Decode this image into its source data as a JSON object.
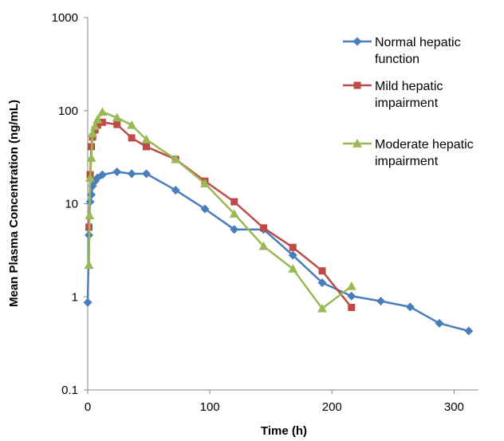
{
  "chart_data": {
    "type": "line",
    "xlabel": "Time (h)",
    "ylabel": "Mean Plasma Concentration (ng/mL)",
    "xlim": [
      0,
      320
    ],
    "ylim": [
      0.1,
      1000
    ],
    "y_scale": "log",
    "x_ticks": [
      {
        "value": 0,
        "label": "0"
      },
      {
        "value": 100,
        "label": "100"
      },
      {
        "value": 200,
        "label": "200"
      },
      {
        "value": 300,
        "label": "300"
      }
    ],
    "y_ticks": [
      {
        "value": 0.1,
        "label": "0.1"
      },
      {
        "value": 1,
        "label": "1"
      },
      {
        "value": 10,
        "label": "10"
      },
      {
        "value": 100,
        "label": "100"
      },
      {
        "value": 1000,
        "label": "1000"
      }
    ],
    "grid": false,
    "legend_position": "top-right",
    "series": [
      {
        "name": "Normal hepatic function",
        "legend_lines": [
          "Normal hepatic",
          "function"
        ],
        "color": "#4a7ebb",
        "marker": "diamond",
        "x": [
          0,
          1,
          2,
          3,
          4,
          6,
          8,
          12,
          24,
          36,
          48,
          72,
          96,
          120,
          144,
          168,
          192,
          216,
          240,
          264,
          288,
          312
        ],
        "y": [
          0.87,
          4.6,
          10.5,
          12.5,
          15.5,
          17.5,
          19,
          20.5,
          22,
          21,
          21,
          14,
          8.8,
          5.3,
          5.3,
          2.8,
          1.42,
          1.02,
          0.9,
          0.78,
          0.52,
          0.43
        ]
      },
      {
        "name": "Mild hepatic impairment",
        "legend_lines": [
          "Mild hepatic",
          "impairment"
        ],
        "color": "#be4b48",
        "marker": "square",
        "x": [
          1,
          2,
          3,
          4,
          6,
          8,
          12,
          24,
          36,
          48,
          72,
          96,
          120,
          144,
          168,
          192,
          216
        ],
        "y": [
          5.6,
          20.5,
          41,
          52,
          62,
          70,
          75,
          71,
          51,
          41,
          30,
          17.5,
          10.5,
          5.5,
          3.4,
          1.9,
          0.77
        ]
      },
      {
        "name": "Moderate hepatic impairment",
        "legend_lines": [
          "Moderate hepatic",
          "impairment"
        ],
        "color": "#98b954",
        "marker": "triangle",
        "x": [
          1,
          1.5,
          2,
          3,
          4,
          6,
          8,
          12,
          24,
          36,
          48,
          72,
          96,
          120,
          144,
          168,
          192,
          216
        ],
        "y": [
          2.2,
          7.5,
          19,
          31,
          57,
          68,
          80,
          97,
          84,
          70,
          49,
          30,
          16.5,
          7.8,
          3.5,
          2.0,
          0.75,
          1.3
        ]
      }
    ]
  }
}
